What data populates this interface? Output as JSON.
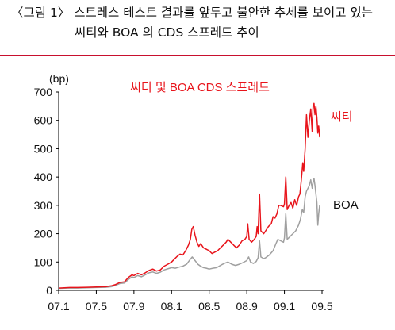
{
  "caption": {
    "line1": "〈그림 1〉 스트레스 테스트 결과를 앞두고 불안한 추세를 보이고 있는",
    "line2": "씨티와 BOA 의 CDS 스프레드 추이"
  },
  "colors": {
    "citi": "#e8141b",
    "boa": "#a0a0a0",
    "rule": "#c8102e",
    "axis": "#000000"
  },
  "chart_data": {
    "type": "line",
    "title": "씨티 및 BOA CDS 스프레드",
    "unit": "(bp)",
    "ylim": [
      0,
      700
    ],
    "yticks": [
      0,
      100,
      200,
      300,
      400,
      500,
      600,
      700
    ],
    "xlim": [
      0,
      28
    ],
    "xticks": [
      {
        "label": "07.1",
        "x": 0
      },
      {
        "label": "07.5",
        "x": 4
      },
      {
        "label": "07.9",
        "x": 8
      },
      {
        "label": "08.1",
        "x": 12
      },
      {
        "label": "08.5",
        "x": 16
      },
      {
        "label": "08.9",
        "x": 20
      },
      {
        "label": "09.1",
        "x": 24
      },
      {
        "label": "09.5",
        "x": 28
      }
    ],
    "grid": false,
    "series": [
      {
        "name": "씨티",
        "color_key": "citi",
        "points": [
          [
            0,
            8
          ],
          [
            0.6,
            9
          ],
          [
            1.2,
            10
          ],
          [
            2,
            10
          ],
          [
            3,
            11
          ],
          [
            4,
            12
          ],
          [
            5,
            13
          ],
          [
            5.6,
            16
          ],
          [
            6,
            20
          ],
          [
            6.5,
            28
          ],
          [
            7,
            30
          ],
          [
            7.4,
            45
          ],
          [
            7.8,
            55
          ],
          [
            8,
            52
          ],
          [
            8.4,
            60
          ],
          [
            8.8,
            55
          ],
          [
            9.2,
            62
          ],
          [
            9.6,
            70
          ],
          [
            10,
            75
          ],
          [
            10.4,
            68
          ],
          [
            10.8,
            72
          ],
          [
            11.2,
            85
          ],
          [
            11.6,
            92
          ],
          [
            12,
            100
          ],
          [
            12.3,
            110
          ],
          [
            12.6,
            120
          ],
          [
            12.9,
            128
          ],
          [
            13.2,
            125
          ],
          [
            13.5,
            140
          ],
          [
            13.8,
            160
          ],
          [
            14,
            180
          ],
          [
            14.15,
            215
          ],
          [
            14.3,
            225
          ],
          [
            14.5,
            195
          ],
          [
            14.7,
            170
          ],
          [
            14.9,
            155
          ],
          [
            15.1,
            165
          ],
          [
            15.4,
            150
          ],
          [
            15.7,
            145
          ],
          [
            16,
            140
          ],
          [
            16.3,
            130
          ],
          [
            16.6,
            135
          ],
          [
            16.9,
            140
          ],
          [
            17.2,
            150
          ],
          [
            17.5,
            160
          ],
          [
            17.8,
            170
          ],
          [
            18,
            180
          ],
          [
            18.3,
            170
          ],
          [
            18.6,
            160
          ],
          [
            18.9,
            150
          ],
          [
            19.2,
            160
          ],
          [
            19.5,
            175
          ],
          [
            19.8,
            180
          ],
          [
            20,
            190
          ],
          [
            20.1,
            235
          ],
          [
            20.25,
            180
          ],
          [
            20.5,
            170
          ],
          [
            20.8,
            180
          ],
          [
            21,
            190
          ],
          [
            21.1,
            225
          ],
          [
            21.2,
            200
          ],
          [
            21.35,
            340
          ],
          [
            21.5,
            210
          ],
          [
            21.8,
            200
          ],
          [
            22,
            210
          ],
          [
            22.3,
            225
          ],
          [
            22.6,
            235
          ],
          [
            22.8,
            260
          ],
          [
            23,
            255
          ],
          [
            23.2,
            270
          ],
          [
            23.4,
            300
          ],
          [
            23.6,
            300
          ],
          [
            23.9,
            295
          ],
          [
            24,
            305
          ],
          [
            24.15,
            400
          ],
          [
            24.3,
            285
          ],
          [
            24.5,
            300
          ],
          [
            24.7,
            310
          ],
          [
            24.9,
            290
          ],
          [
            25.1,
            320
          ],
          [
            25.3,
            300
          ],
          [
            25.5,
            330
          ],
          [
            25.65,
            340
          ],
          [
            25.8,
            390
          ],
          [
            25.95,
            450
          ],
          [
            26.05,
            420
          ],
          [
            26.2,
            500
          ],
          [
            26.35,
            620
          ],
          [
            26.5,
            540
          ],
          [
            26.65,
            600
          ],
          [
            26.8,
            640
          ],
          [
            26.95,
            560
          ],
          [
            27.05,
            650
          ],
          [
            27.15,
            660
          ],
          [
            27.25,
            620
          ],
          [
            27.35,
            650
          ],
          [
            27.45,
            610
          ],
          [
            27.55,
            555
          ],
          [
            27.65,
            580
          ],
          [
            27.75,
            540
          ]
        ]
      },
      {
        "name": "BOA",
        "color_key": "boa",
        "points": [
          [
            0,
            7
          ],
          [
            1,
            8
          ],
          [
            2,
            8
          ],
          [
            3,
            9
          ],
          [
            4,
            10
          ],
          [
            5,
            11
          ],
          [
            5.6,
            13
          ],
          [
            6,
            17
          ],
          [
            6.5,
            24
          ],
          [
            7,
            26
          ],
          [
            7.4,
            38
          ],
          [
            7.8,
            48
          ],
          [
            8,
            45
          ],
          [
            8.4,
            52
          ],
          [
            8.8,
            48
          ],
          [
            9.2,
            55
          ],
          [
            9.6,
            62
          ],
          [
            10,
            65
          ],
          [
            10.4,
            60
          ],
          [
            10.8,
            64
          ],
          [
            11.2,
            72
          ],
          [
            11.6,
            76
          ],
          [
            12,
            80
          ],
          [
            12.4,
            78
          ],
          [
            12.8,
            82
          ],
          [
            13.2,
            85
          ],
          [
            13.6,
            92
          ],
          [
            14,
            110
          ],
          [
            14.2,
            118
          ],
          [
            14.5,
            105
          ],
          [
            14.8,
            92
          ],
          [
            15.1,
            85
          ],
          [
            15.4,
            80
          ],
          [
            15.7,
            78
          ],
          [
            16,
            75
          ],
          [
            16.4,
            78
          ],
          [
            16.8,
            80
          ],
          [
            17.2,
            88
          ],
          [
            17.6,
            95
          ],
          [
            18,
            100
          ],
          [
            18.4,
            92
          ],
          [
            18.8,
            88
          ],
          [
            19.2,
            92
          ],
          [
            19.6,
            98
          ],
          [
            20,
            105
          ],
          [
            20.2,
            118
          ],
          [
            20.4,
            100
          ],
          [
            20.7,
            95
          ],
          [
            21,
            102
          ],
          [
            21.2,
            115
          ],
          [
            21.35,
            175
          ],
          [
            21.5,
            118
          ],
          [
            21.8,
            112
          ],
          [
            22,
            115
          ],
          [
            22.4,
            125
          ],
          [
            22.8,
            140
          ],
          [
            23.1,
            165
          ],
          [
            23.3,
            180
          ],
          [
            23.6,
            175
          ],
          [
            23.9,
            170
          ],
          [
            24,
            185
          ],
          [
            24.15,
            270
          ],
          [
            24.3,
            180
          ],
          [
            24.6,
            190
          ],
          [
            24.9,
            200
          ],
          [
            25.2,
            210
          ],
          [
            25.5,
            230
          ],
          [
            25.7,
            250
          ],
          [
            25.9,
            285
          ],
          [
            26.05,
            275
          ],
          [
            26.2,
            330
          ],
          [
            26.35,
            350
          ],
          [
            26.5,
            360
          ],
          [
            26.65,
            370
          ],
          [
            26.8,
            390
          ],
          [
            26.95,
            360
          ],
          [
            27.05,
            380
          ],
          [
            27.15,
            395
          ],
          [
            27.25,
            370
          ],
          [
            27.35,
            340
          ],
          [
            27.45,
            310
          ],
          [
            27.55,
            230
          ],
          [
            27.65,
            270
          ],
          [
            27.75,
            300
          ]
        ]
      }
    ],
    "annotations": [
      {
        "text": "씨티",
        "series_index": 0
      },
      {
        "text": "BOA",
        "series_index": 1
      }
    ]
  }
}
